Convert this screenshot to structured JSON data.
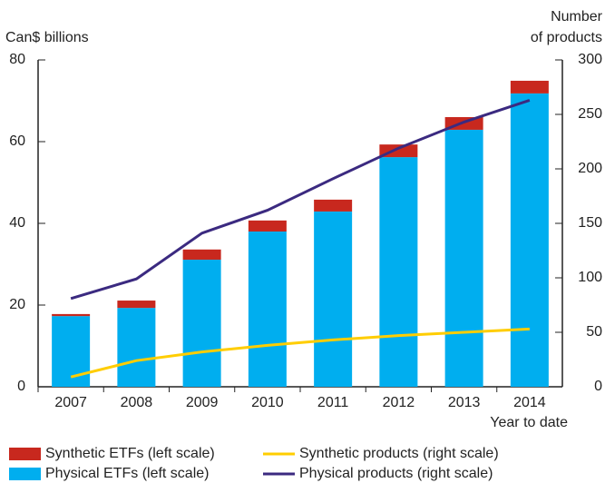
{
  "chart_data": {
    "type": "bar",
    "y_label": "Can$ billions",
    "y2_label": [
      "Number",
      "of products"
    ],
    "x_note": "Year to date",
    "categories": [
      "2007",
      "2008",
      "2009",
      "2010",
      "2011",
      "2012",
      "2013",
      "2014"
    ],
    "series": [
      {
        "name": "Physical ETFs (left scale)",
        "kind": "bar",
        "color": "#00aeef",
        "values": [
          17.3,
          19.3,
          31.1,
          38,
          42.9,
          56.2,
          62.9,
          71.8
        ]
      },
      {
        "name": "Synthetic ETFs (left scale)",
        "kind": "bar",
        "color": "#c8281e",
        "values": [
          0.5,
          1.8,
          2.5,
          2.7,
          2.9,
          3.1,
          3.1,
          3.1
        ]
      },
      {
        "name": "Synthetic products (right scale)",
        "kind": "line",
        "axis": "y2",
        "color": "#ffcd00",
        "values": [
          9,
          24,
          32,
          38,
          43,
          47,
          50,
          53
        ]
      },
      {
        "name": "Physical products (right scale)",
        "kind": "line",
        "axis": "y2",
        "color": "#3b2a80",
        "values": [
          81,
          99,
          141,
          162,
          191,
          219,
          243,
          263
        ]
      }
    ],
    "ylim": [
      0,
      80
    ],
    "yticks": [
      0,
      20,
      40,
      60,
      80
    ],
    "y2lim": [
      0,
      300
    ],
    "y2ticks": [
      0,
      50,
      100,
      150,
      200,
      250,
      300
    ]
  }
}
